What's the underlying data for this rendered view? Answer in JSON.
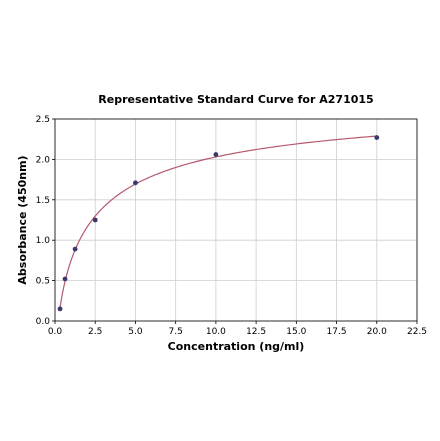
{
  "chart_data": {
    "type": "scatter",
    "title": "Representative Standard Curve for A271015",
    "xlabel": "Concentration (ng/ml)",
    "ylabel": "Absorbance (450nm)",
    "xlim": [
      0,
      22.5
    ],
    "ylim": [
      0,
      2.5
    ],
    "xticks": [
      "0.0",
      "2.5",
      "5.0",
      "7.5",
      "10.0",
      "12.5",
      "15.0",
      "17.5",
      "20.0",
      "22.5"
    ],
    "yticks": [
      "0.0",
      "0.5",
      "1.0",
      "1.5",
      "2.0",
      "2.5"
    ],
    "grid": true,
    "x": [
      0.3125,
      0.625,
      1.25,
      2.5,
      5,
      10,
      20
    ],
    "y": [
      0.15,
      0.52,
      0.89,
      1.25,
      1.71,
      2.06,
      2.27
    ],
    "point_color": "#3a3a6e",
    "fit_line": {
      "type": "4PL",
      "color": "#b45a6e",
      "x_range": [
        0.3125,
        20
      ]
    }
  }
}
